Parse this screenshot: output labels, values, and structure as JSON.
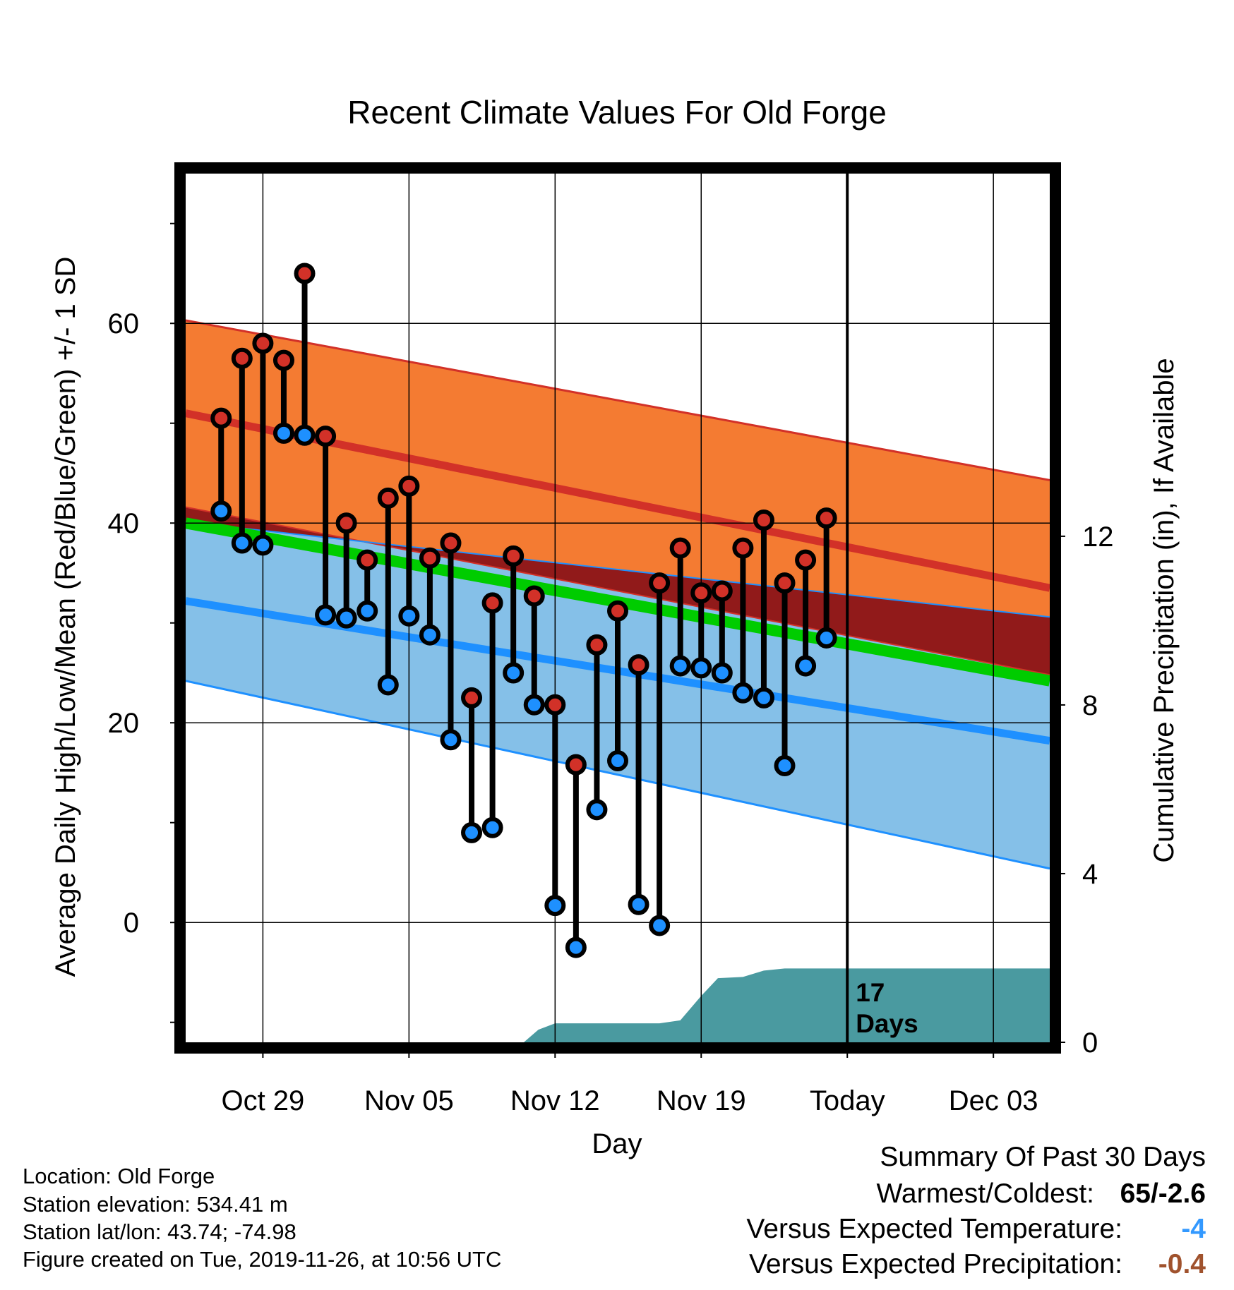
{
  "chart_data": {
    "type": "line",
    "title": "Recent Climate Values For Old Forge",
    "xlabel": "Day",
    "ylabel_left": "Average Daily High/Low/Mean (Red/Blue/Green) +/- 1 SD",
    "ylabel_right": "Cumulative Precipitation (in), If Available",
    "x_tick_labels": [
      "Oct 29",
      "Nov 05",
      "Nov 12",
      "Nov 19",
      "Today",
      "Dec 03"
    ],
    "x_tick_days": [
      -28,
      -21,
      -14,
      -7,
      0,
      7
    ],
    "x_range_days": [
      -31.7,
      9.7
    ],
    "today_marker_label": "17\nDays",
    "y_left": {
      "ticks": [
        0,
        20,
        40,
        60
      ],
      "minor_ticks": [
        -10,
        10,
        30,
        50,
        70
      ],
      "range": [
        -12,
        75
      ]
    },
    "y_right": {
      "ticks": [
        0,
        4,
        8,
        12
      ],
      "range": [
        0,
        20.6
      ]
    },
    "grid": true,
    "normals_days": [
      -31.7,
      9.7
    ],
    "normal_high_mean": [
      51,
      33.5
    ],
    "normal_high_upper": [
      60.3,
      44.3
    ],
    "normal_high_lower": [
      41.6,
      24.8
    ],
    "normal_low_mean": [
      32.2,
      18.2
    ],
    "normal_low_upper": [
      40.1,
      30.6
    ],
    "normal_low_lower": [
      24.2,
      5.4
    ],
    "normal_mean": [
      40,
      24.2
    ],
    "observed": {
      "days": [
        -30,
        -29,
        -28,
        -27,
        -26,
        -25,
        -24,
        -23,
        -22,
        -21,
        -20,
        -19,
        -18,
        -17,
        -16,
        -15,
        -14,
        -13,
        -12,
        -11,
        -10,
        -9,
        -8,
        -7,
        -6,
        -5,
        -4,
        -3,
        -2,
        -1
      ],
      "high": [
        50.5,
        56.5,
        58,
        56.3,
        65,
        48.7,
        40,
        36.3,
        42.5,
        43.7,
        36.5,
        38,
        22.5,
        32,
        36.7,
        32.7,
        21.8,
        15.8,
        27.8,
        31.2,
        25.8,
        34,
        37.5,
        33,
        33.2,
        37.5,
        40.3,
        34,
        36.3,
        40.5
      ],
      "low": [
        41.2,
        38,
        37.8,
        49,
        48.8,
        30.8,
        30.5,
        31.2,
        23.8,
        30.7,
        28.8,
        18.3,
        9,
        9.5,
        25,
        21.8,
        1.7,
        -2.5,
        11.3,
        16.2,
        1.8,
        -0.3,
        25.7,
        25.5,
        25,
        23,
        22.5,
        15.7,
        25.7,
        28.5
      ]
    },
    "precip_cumulative": {
      "days": [
        -15.5,
        -14.8,
        -14,
        -11,
        -9,
        -8,
        -7,
        -6.2,
        -5,
        -4,
        -3,
        -2,
        9.7
      ],
      "values": [
        0,
        0.3,
        0.45,
        0.45,
        0.45,
        0.52,
        1.1,
        1.52,
        1.55,
        1.7,
        1.75,
        1.75,
        1.75
      ]
    },
    "colors": {
      "high_band": "#f47b32",
      "high_mean": "#d23128",
      "low_band": "#85c0e8",
      "low_mean": "#1e90ff",
      "overlap": "#911a1a",
      "mean": "#00cc00",
      "precip": "#4a9aa0",
      "high_marker": "#d23128",
      "low_marker": "#1e90ff"
    }
  },
  "footer": {
    "location": "Location: Old Forge",
    "elevation": "Station elevation: 534.41 m",
    "latlon": "Station lat/lon: 43.74; -74.98",
    "created": "Figure created on Tue, 2019-11-26, at 10:56 UTC"
  },
  "summary": {
    "heading": "Summary Of Past 30 Days",
    "warmest_coldest_label": "Warmest/Coldest:",
    "warmest_coldest_value": "65/-2.6",
    "temp_label": "Versus Expected Temperature:",
    "temp_value": "-4",
    "temp_color": "#3399ff",
    "precip_label": "Versus Expected Precipitation:",
    "precip_value": "-0.4",
    "precip_color": "#a0522d"
  }
}
